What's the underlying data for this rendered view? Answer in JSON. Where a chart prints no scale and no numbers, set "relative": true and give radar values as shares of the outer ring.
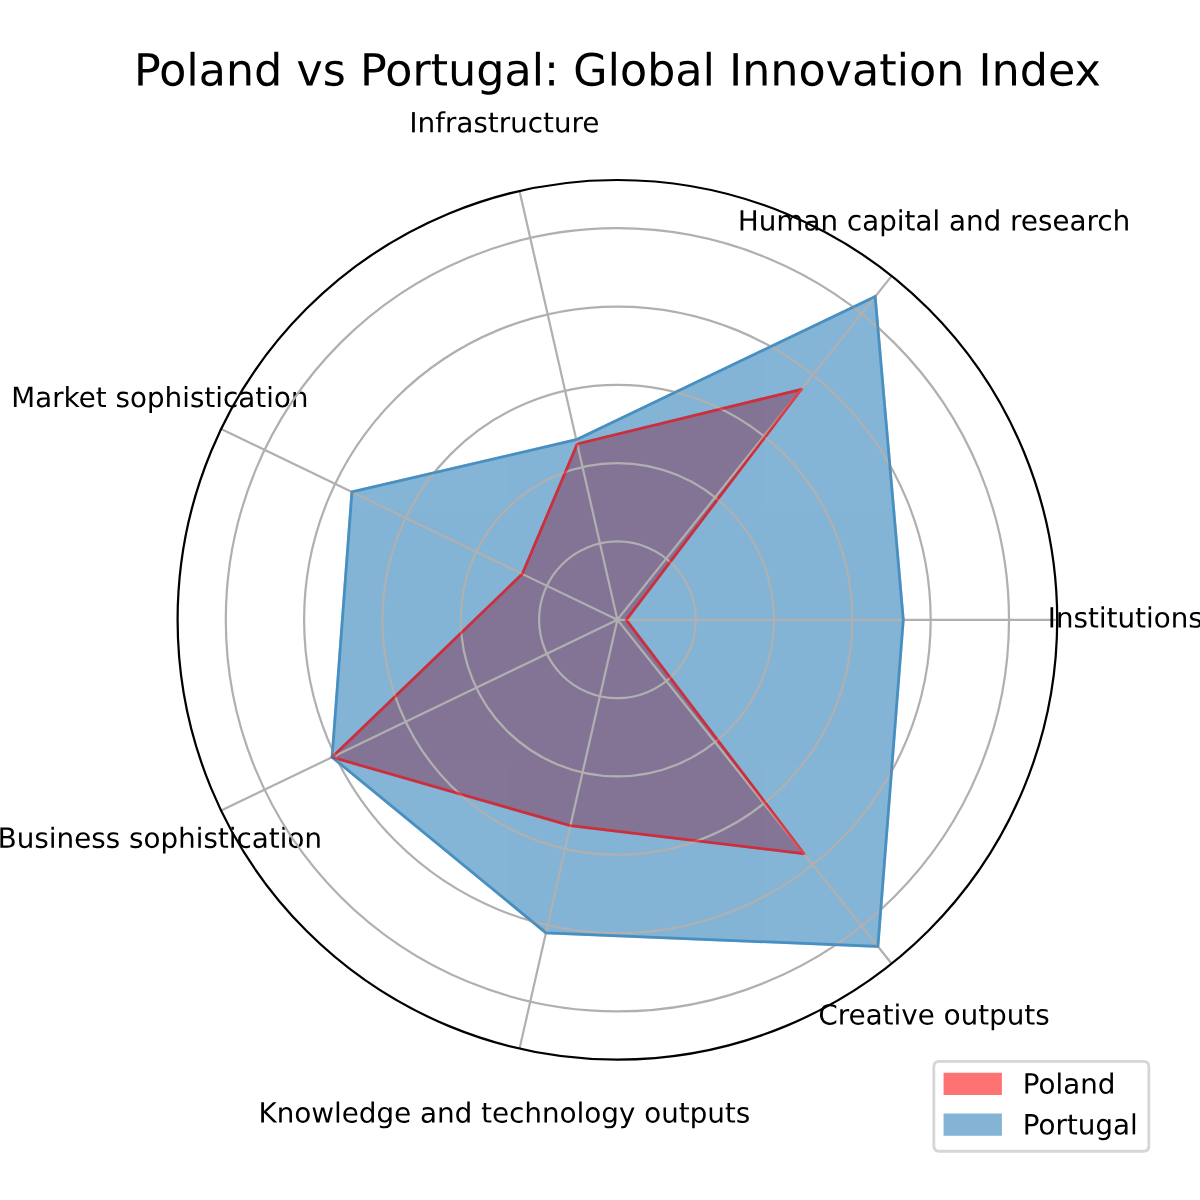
{
  "chart_data": {
    "type": "radar",
    "title": "Poland vs Portugal: Global Innovation Index",
    "relative": true,
    "categories": [
      "Human capital and research",
      "Institutions",
      "Creative outputs",
      "Knowledge and technology outputs",
      "Business sophistication",
      "Market sophistication",
      "Infrastructure"
    ],
    "series": [
      {
        "name": "Poland",
        "color": "#ff0000",
        "values": [
          0.67,
          0.02,
          0.68,
          0.48,
          0.72,
          0.24,
          0.41
        ]
      },
      {
        "name": "Portugal",
        "color": "#1f77b4",
        "values": [
          0.94,
          0.65,
          0.95,
          0.73,
          0.72,
          0.67,
          0.42
        ]
      }
    ],
    "grid": true,
    "legend": "bottom right",
    "marker": "none"
  }
}
